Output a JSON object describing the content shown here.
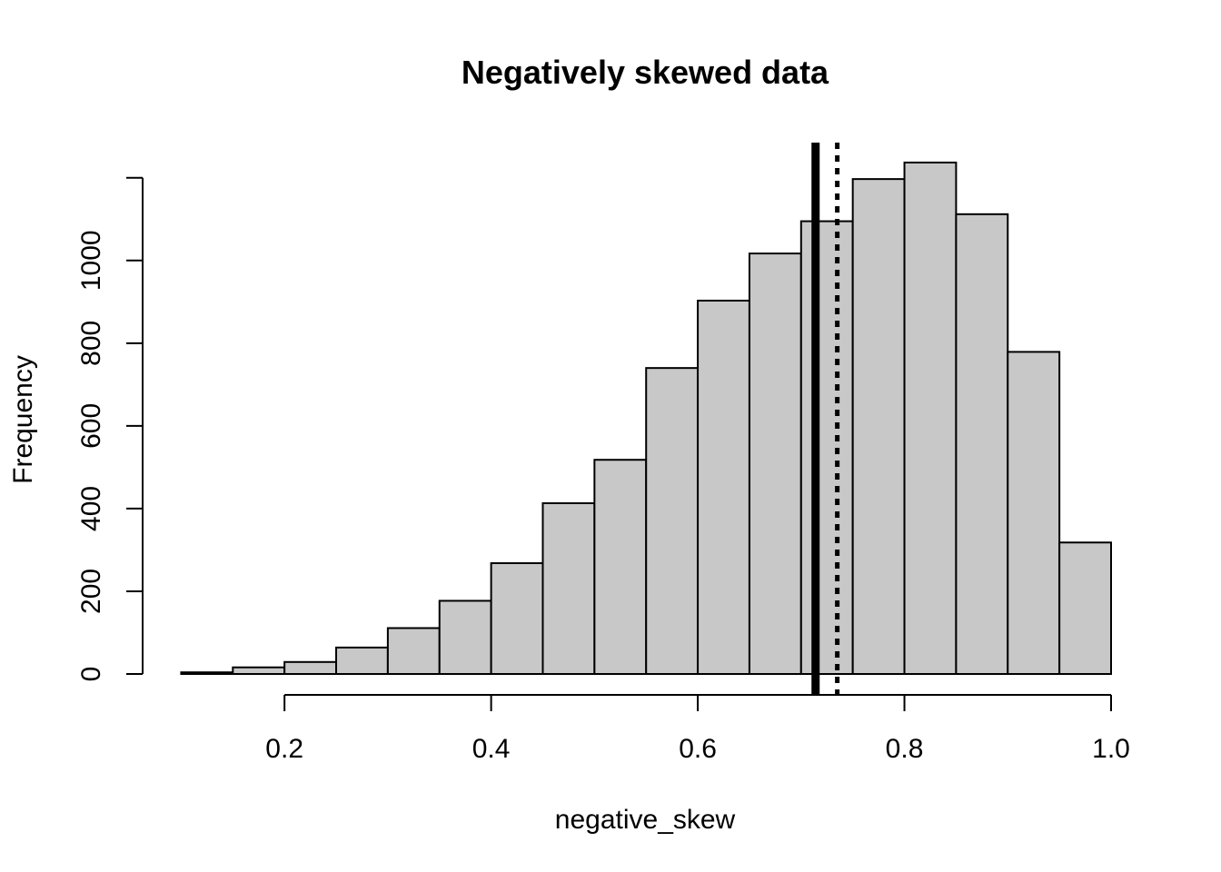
{
  "chart_data": {
    "type": "bar",
    "title": "Negatively skewed data",
    "xlabel": "negative_skew",
    "ylabel": "Frequency",
    "bin_edges": [
      0.1,
      0.15,
      0.2,
      0.25,
      0.3,
      0.35,
      0.4,
      0.45,
      0.5,
      0.55,
      0.6,
      0.65,
      0.7,
      0.75,
      0.8,
      0.85,
      0.9,
      0.95,
      1.0
    ],
    "values": [
      4,
      16,
      29,
      64,
      111,
      177,
      268,
      413,
      518,
      740,
      903,
      1017,
      1095,
      1197,
      1237,
      1112,
      779,
      318
    ],
    "xlim": [
      0.1,
      1.0
    ],
    "ylim": [
      0,
      1200
    ],
    "x_ticks": [
      0.2,
      0.4,
      0.6,
      0.8,
      1.0
    ],
    "x_tick_labels": [
      "0.2",
      "0.4",
      "0.6",
      "0.8",
      "1.0"
    ],
    "y_ticks": [
      0,
      200,
      400,
      600,
      800,
      1000,
      1200
    ],
    "y_tick_labels": [
      "0",
      "200",
      "400",
      "600",
      "800",
      "1000",
      ""
    ],
    "reference_lines": [
      {
        "value": 0.714,
        "style": "solid",
        "color": "#000000"
      },
      {
        "value": 0.735,
        "style": "dotted",
        "color": "#000000"
      }
    ],
    "bar_color": "#c8c8c8",
    "grid": false
  }
}
